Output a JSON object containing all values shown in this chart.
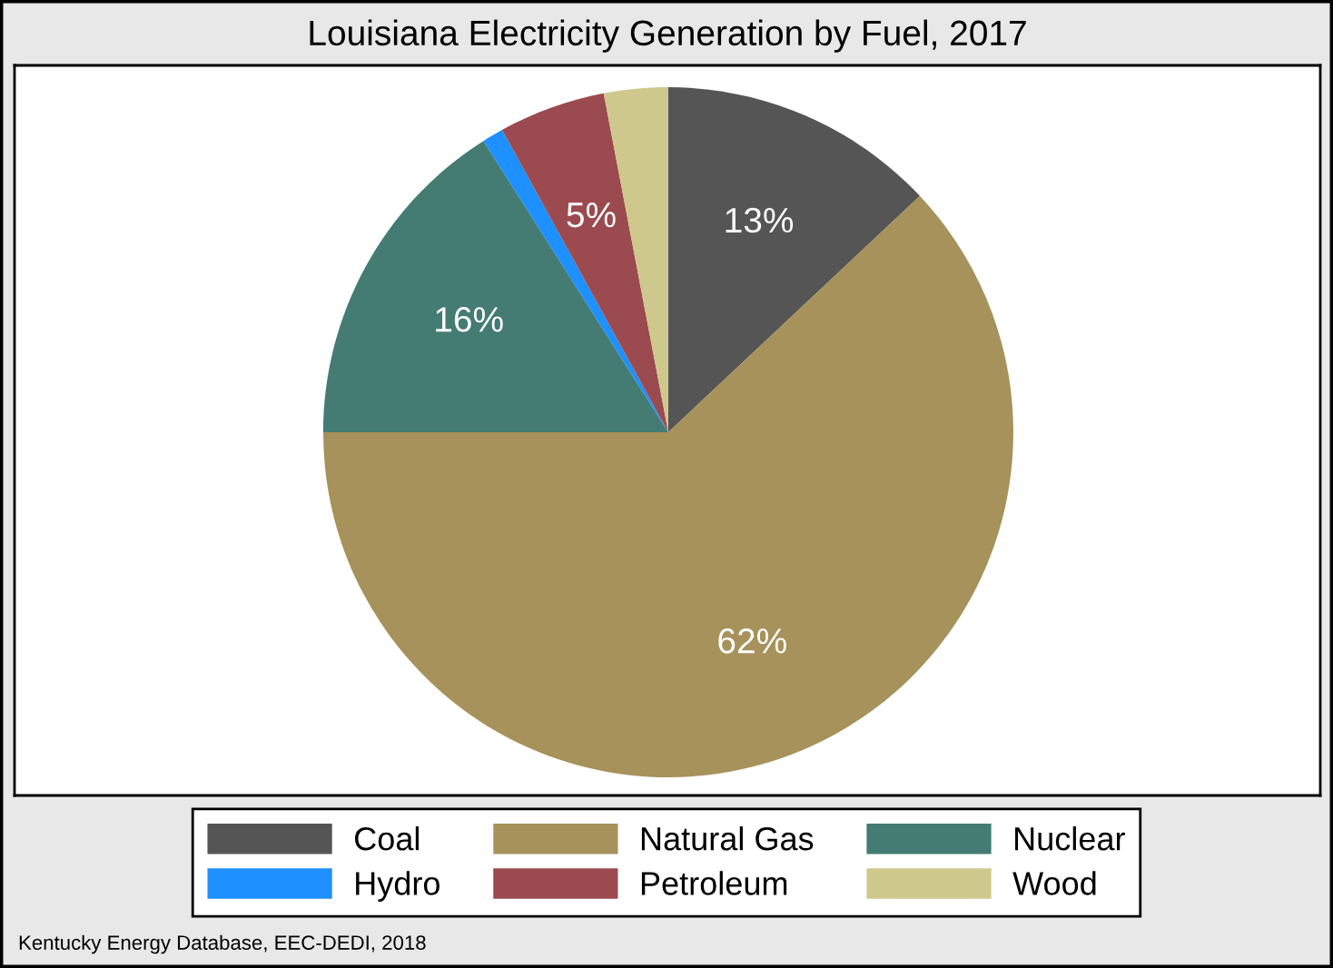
{
  "chart_data": {
    "type": "pie",
    "title": "Louisiana Electricity Generation by Fuel, 2017",
    "categories": [
      "Coal",
      "Natural Gas",
      "Nuclear",
      "Hydro",
      "Petroleum",
      "Wood"
    ],
    "values": [
      13,
      62,
      16,
      1,
      5,
      3
    ],
    "colors": [
      "#555555",
      "#a6925a",
      "#447b73",
      "#1e90ff",
      "#9b4a4f",
      "#cec88c"
    ],
    "value_labels": [
      "13%",
      "62%",
      "16%",
      null,
      "5%",
      null
    ],
    "legend": "bottom",
    "annotations": [
      "Kentucky Energy Database, EEC-DEDI, 2018"
    ]
  }
}
